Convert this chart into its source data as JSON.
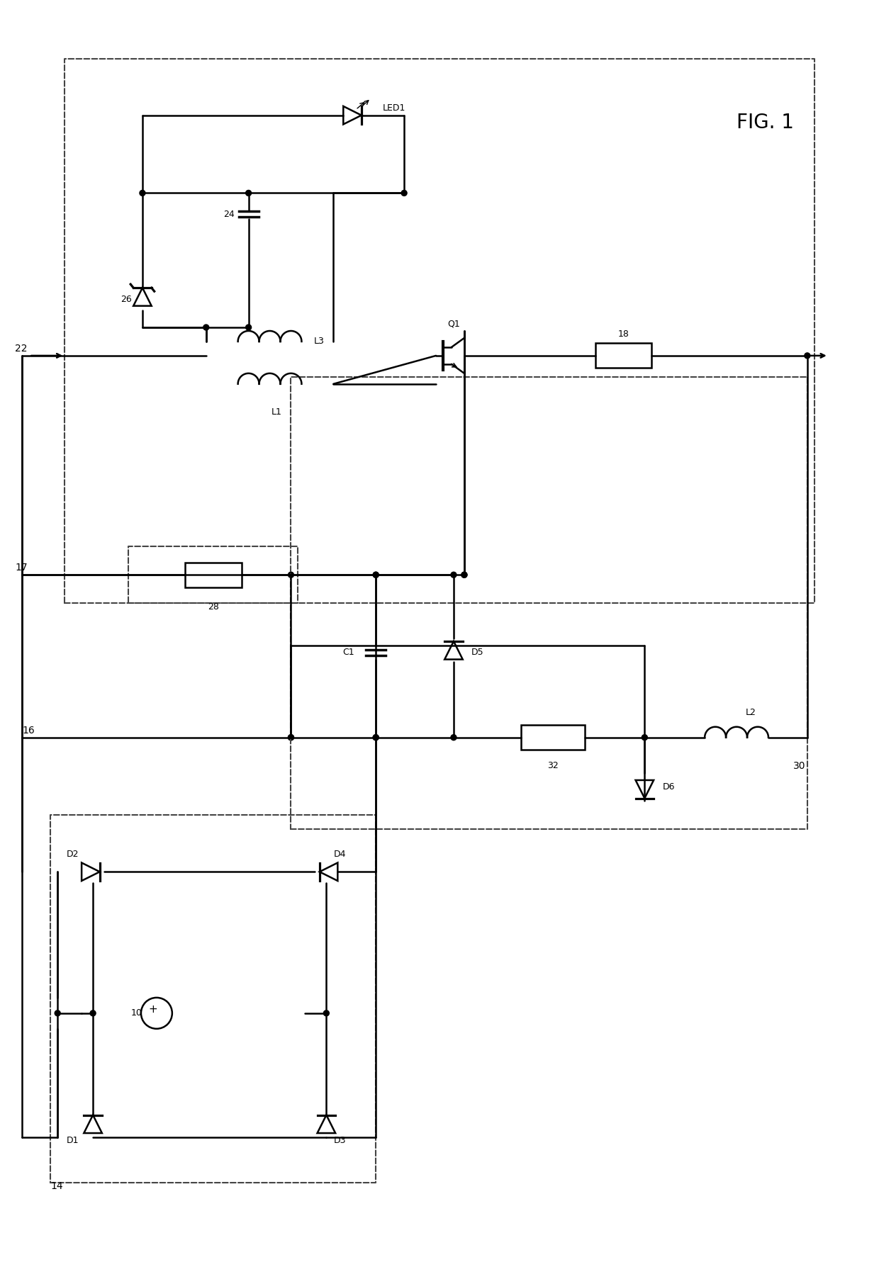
{
  "title": "FIG. 1",
  "bg_color": "#ffffff",
  "line_color": "#000000",
  "dashed_color": "#555555",
  "figsize": [
    12.4,
    18.12
  ],
  "dpi": 100,
  "labels": {
    "fig_title": "FIG. 1",
    "LED1": "LED1",
    "L1": "L1",
    "L2": "L2",
    "L3": "L3",
    "C1": "C1",
    "Q1": "Q1",
    "D1": "D1",
    "D2": "D2",
    "D3": "D3",
    "D4": "D4",
    "D5": "D5",
    "D6": "D6",
    "n10": "10",
    "n14": "14",
    "n16": "16",
    "n17": "17",
    "n18": "18",
    "n22": "22",
    "n24": "24",
    "n26": "26",
    "n28": "28",
    "n30": "30",
    "n32": "32"
  }
}
